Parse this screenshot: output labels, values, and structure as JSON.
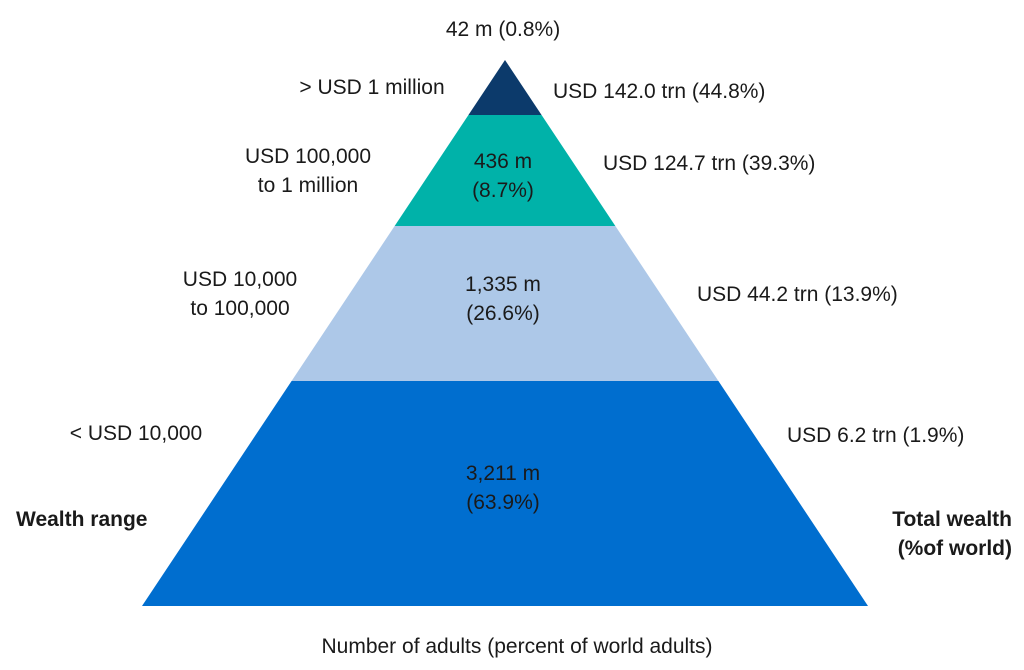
{
  "chart_data": {
    "type": "pyramid",
    "title": "",
    "xlabel": "Number of adults (percent of world adults)",
    "left_axis_title": "Wealth range",
    "right_axis_title": [
      "Total wealth",
      "(%of world)"
    ],
    "tiers": [
      {
        "range_label": [
          "> USD 1 million"
        ],
        "adults_label": [
          "42 m (0.8%)"
        ],
        "adults_millions": 42,
        "adults_pct": 0.8,
        "wealth_label": "USD 142.0 trn (44.8%)",
        "wealth_trn": 142.0,
        "wealth_pct": 44.8,
        "color": "#0c3a6b"
      },
      {
        "range_label": [
          "USD 100,000",
          "to 1 million"
        ],
        "adults_label": [
          "436 m",
          "(8.7%)"
        ],
        "adults_millions": 436,
        "adults_pct": 8.7,
        "wealth_label": "USD 124.7 trn (39.3%)",
        "wealth_trn": 124.7,
        "wealth_pct": 39.3,
        "color": "#00b2a9"
      },
      {
        "range_label": [
          "USD 10,000",
          "to 100,000"
        ],
        "adults_label": [
          "1,335 m",
          "(26.6%)"
        ],
        "adults_millions": 1335,
        "adults_pct": 26.6,
        "wealth_label": "USD 44.2 trn (13.9%)",
        "wealth_trn": 44.2,
        "wealth_pct": 13.9,
        "color": "#adc8e8"
      },
      {
        "range_label": [
          "< USD 10,000"
        ],
        "adults_label": [
          "3,211 m",
          "(63.9%)"
        ],
        "adults_millions": 3211,
        "adults_pct": 63.9,
        "wealth_label": "USD 6.2 trn (1.9%)",
        "wealth_trn": 6.2,
        "wealth_pct": 1.9,
        "color": "#006ecf"
      }
    ]
  }
}
